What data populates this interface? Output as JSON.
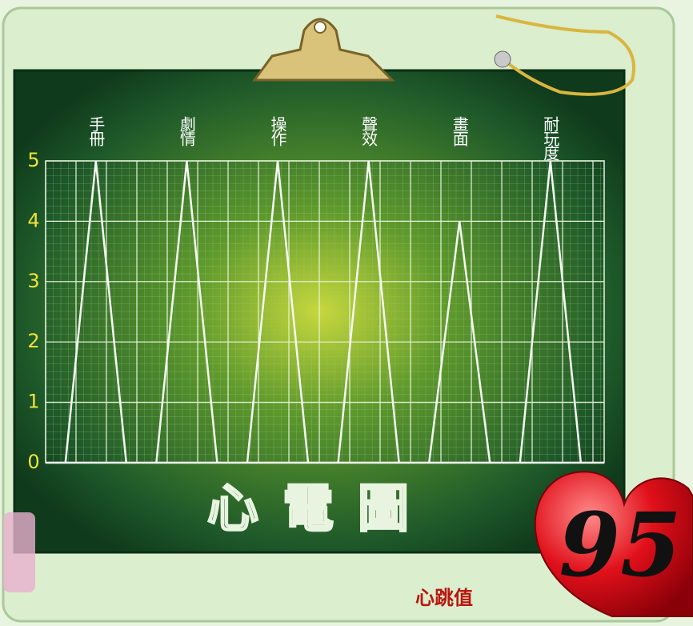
{
  "chart_data": {
    "type": "line",
    "title": "心電圖",
    "categories": [
      "手冊",
      "劇情",
      "操作",
      "聲效",
      "畫面",
      "耐玩度"
    ],
    "values": [
      5,
      5,
      5,
      5,
      4,
      5
    ],
    "color": "#f4fbf2",
    "ylim": [
      0,
      5
    ],
    "yticks": [
      0,
      1,
      2,
      3,
      4,
      5
    ],
    "grid": true,
    "score": 95,
    "score_caption": "心跳值"
  }
}
